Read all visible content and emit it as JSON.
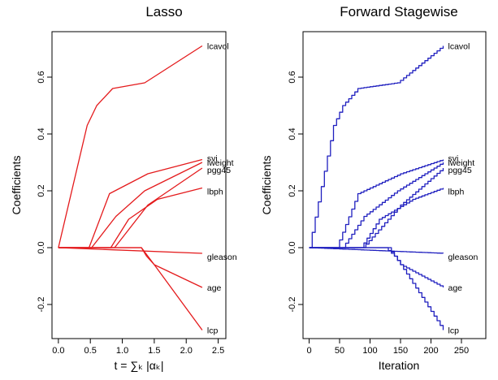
{
  "charts": [
    {
      "id": "lasso",
      "type": "line",
      "step": false,
      "title": "Lasso",
      "xlabel": "t = ∑ₖ |αₖ|",
      "ylabel": "Coefficients",
      "color": "#e41a1c",
      "xlim": [
        -0.1,
        2.62
      ],
      "ylim": [
        -0.32,
        0.76
      ],
      "xticks": [
        0.0,
        0.5,
        1.0,
        1.5,
        2.0,
        2.5
      ],
      "xtick_labels": [
        "0.0",
        "0.5",
        "1.0",
        "1.5",
        "2.0",
        "2.5"
      ],
      "yticks": [
        -0.2,
        0.0,
        0.2,
        0.4,
        0.6
      ],
      "ytick_labels": [
        "-0.2",
        "0.0",
        "0.2",
        "0.4",
        "0.6"
      ],
      "series": [
        {
          "name": "lcavol",
          "x": [
            0,
            0.45,
            0.6,
            0.85,
            1.35,
            2.25
          ],
          "y": [
            0,
            0.43,
            0.5,
            0.56,
            0.58,
            0.71
          ]
        },
        {
          "name": "svi",
          "x": [
            0,
            0.48,
            0.8,
            1.4,
            2.25
          ],
          "y": [
            0,
            0,
            0.19,
            0.26,
            0.31
          ]
        },
        {
          "name": "lweight",
          "x": [
            0,
            0.52,
            0.9,
            1.35,
            2.25
          ],
          "y": [
            0,
            0,
            0.11,
            0.2,
            0.3
          ]
        },
        {
          "name": "pgg45",
          "x": [
            0,
            0.88,
            1.4,
            2.25
          ],
          "y": [
            0,
            0,
            0.15,
            0.28
          ]
        },
        {
          "name": "lbph",
          "x": [
            0,
            0.82,
            1.1,
            1.55,
            2.25
          ],
          "y": [
            0,
            0,
            0.1,
            0.17,
            0.21
          ]
        },
        {
          "name": "gleason",
          "x": [
            0,
            2.25
          ],
          "y": [
            0,
            -0.02
          ]
        },
        {
          "name": "age",
          "x": [
            0,
            1.3,
            1.5,
            2.25
          ],
          "y": [
            0,
            0,
            -0.06,
            -0.14
          ]
        },
        {
          "name": "lcp",
          "x": [
            0,
            1.3,
            1.38,
            1.5,
            2.25
          ],
          "y": [
            0,
            0,
            -0.03,
            -0.06,
            -0.29
          ]
        }
      ]
    },
    {
      "id": "stagewise",
      "type": "line",
      "step": true,
      "title": "Forward Stagewise",
      "xlabel": "Iteration",
      "ylabel": "Coefficients",
      "color": "#1f1fbf",
      "xlim": [
        -10,
        290
      ],
      "ylim": [
        -0.32,
        0.76
      ],
      "xticks": [
        0,
        50,
        100,
        150,
        200,
        250
      ],
      "xtick_labels": [
        "0",
        "50",
        "100",
        "150",
        "200",
        "250"
      ],
      "yticks": [
        -0.2,
        0.0,
        0.2,
        0.4,
        0.6
      ],
      "ytick_labels": [
        "-0.2",
        "0.0",
        "0.2",
        "0.4",
        "0.6"
      ],
      "series": [
        {
          "name": "lcavol",
          "x": [
            0,
            40,
            55,
            80,
            145,
            220
          ],
          "y": [
            0,
            0.43,
            0.5,
            0.56,
            0.58,
            0.71
          ]
        },
        {
          "name": "svi",
          "x": [
            0,
            45,
            80,
            150,
            220
          ],
          "y": [
            0,
            0,
            0.19,
            0.26,
            0.31
          ]
        },
        {
          "name": "lweight",
          "x": [
            0,
            55,
            90,
            145,
            220
          ],
          "y": [
            0,
            0,
            0.11,
            0.2,
            0.3
          ]
        },
        {
          "name": "pgg45",
          "x": [
            0,
            88,
            150,
            220
          ],
          "y": [
            0,
            0,
            0.15,
            0.28
          ]
        },
        {
          "name": "lbph",
          "x": [
            0,
            85,
            115,
            170,
            220
          ],
          "y": [
            0,
            0,
            0.1,
            0.17,
            0.21
          ]
        },
        {
          "name": "gleason",
          "x": [
            0,
            220
          ],
          "y": [
            0,
            -0.02
          ]
        },
        {
          "name": "age",
          "x": [
            0,
            130,
            150,
            220
          ],
          "y": [
            0,
            0,
            -0.06,
            -0.14
          ]
        },
        {
          "name": "lcp",
          "x": [
            0,
            125,
            140,
            150,
            220
          ],
          "y": [
            0,
            0,
            -0.03,
            -0.06,
            -0.29
          ]
        }
      ]
    }
  ]
}
